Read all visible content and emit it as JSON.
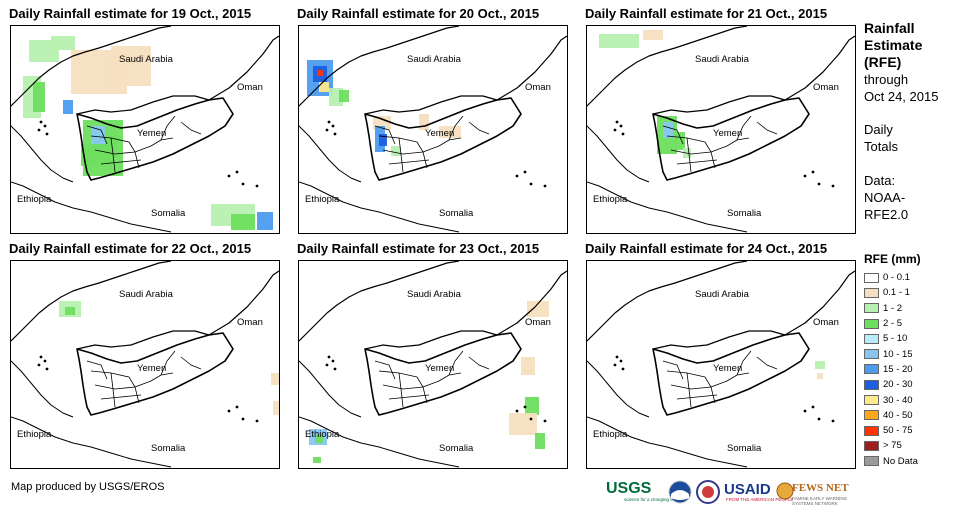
{
  "panels": [
    {
      "title": "Daily Rainfall estimate for 19 Oct., 2015",
      "rain_level": "heavy"
    },
    {
      "title": "Daily Rainfall estimate for 20 Oct., 2015",
      "rain_level": "heavy"
    },
    {
      "title": "Daily Rainfall estimate for 21 Oct., 2015",
      "rain_level": "moderate"
    },
    {
      "title": "Daily Rainfall estimate for 22 Oct., 2015",
      "rain_level": "light"
    },
    {
      "title": "Daily Rainfall estimate for 23 Oct., 2015",
      "rain_level": "light"
    },
    {
      "title": "Daily Rainfall estimate for 24 Oct., 2015",
      "rain_level": "light"
    }
  ],
  "labels": {
    "saudi": "Saudi Arabia",
    "oman": "Oman",
    "yemen": "Yemen",
    "ethiopia": "Ethiopia",
    "somalia": "Somalia"
  },
  "side": {
    "title_1": "Rainfall",
    "title_2": "Estimate",
    "title_3": "(RFE)",
    "through": "through",
    "date": "Oct 24, 2015",
    "daily": "Daily",
    "totals": "Totals",
    "data_label": "Data:",
    "source_1": "NOAA-",
    "source_2": "RFE2.0"
  },
  "legend": {
    "title": "RFE (mm)",
    "items": [
      {
        "label": "0 - 0.1",
        "color": "#ffffff"
      },
      {
        "label": "0.1 - 1",
        "color": "#f5dfc0"
      },
      {
        "label": "1 - 2",
        "color": "#b7f0b0"
      },
      {
        "label": "2 - 5",
        "color": "#6ede5e"
      },
      {
        "label": "5 - 10",
        "color": "#b8ecf8"
      },
      {
        "label": "10 - 15",
        "color": "#88c6f2"
      },
      {
        "label": "15 - 20",
        "color": "#4d9cee"
      },
      {
        "label": "20 - 30",
        "color": "#1d5ee0"
      },
      {
        "label": "30 - 40",
        "color": "#ffe98a"
      },
      {
        "label": "40 - 50",
        "color": "#ffa81c"
      },
      {
        "label": "50 - 75",
        "color": "#ff3300"
      },
      {
        "label": "> 75",
        "color": "#a01e1e"
      },
      {
        "label": "No Data",
        "color": "#9a9a9a"
      }
    ]
  },
  "footer": "Map produced by USGS/EROS",
  "logos": {
    "usgs": "USGS",
    "usgs_tagline": "science for a changing world",
    "usaid": "USAID",
    "usaid_tagline": "FROM THE AMERICAN PEOPLE",
    "fews": "FEWS NET",
    "fews_tagline": "FAMINE EARLY WARNING SYSTEMS NETWORK"
  }
}
